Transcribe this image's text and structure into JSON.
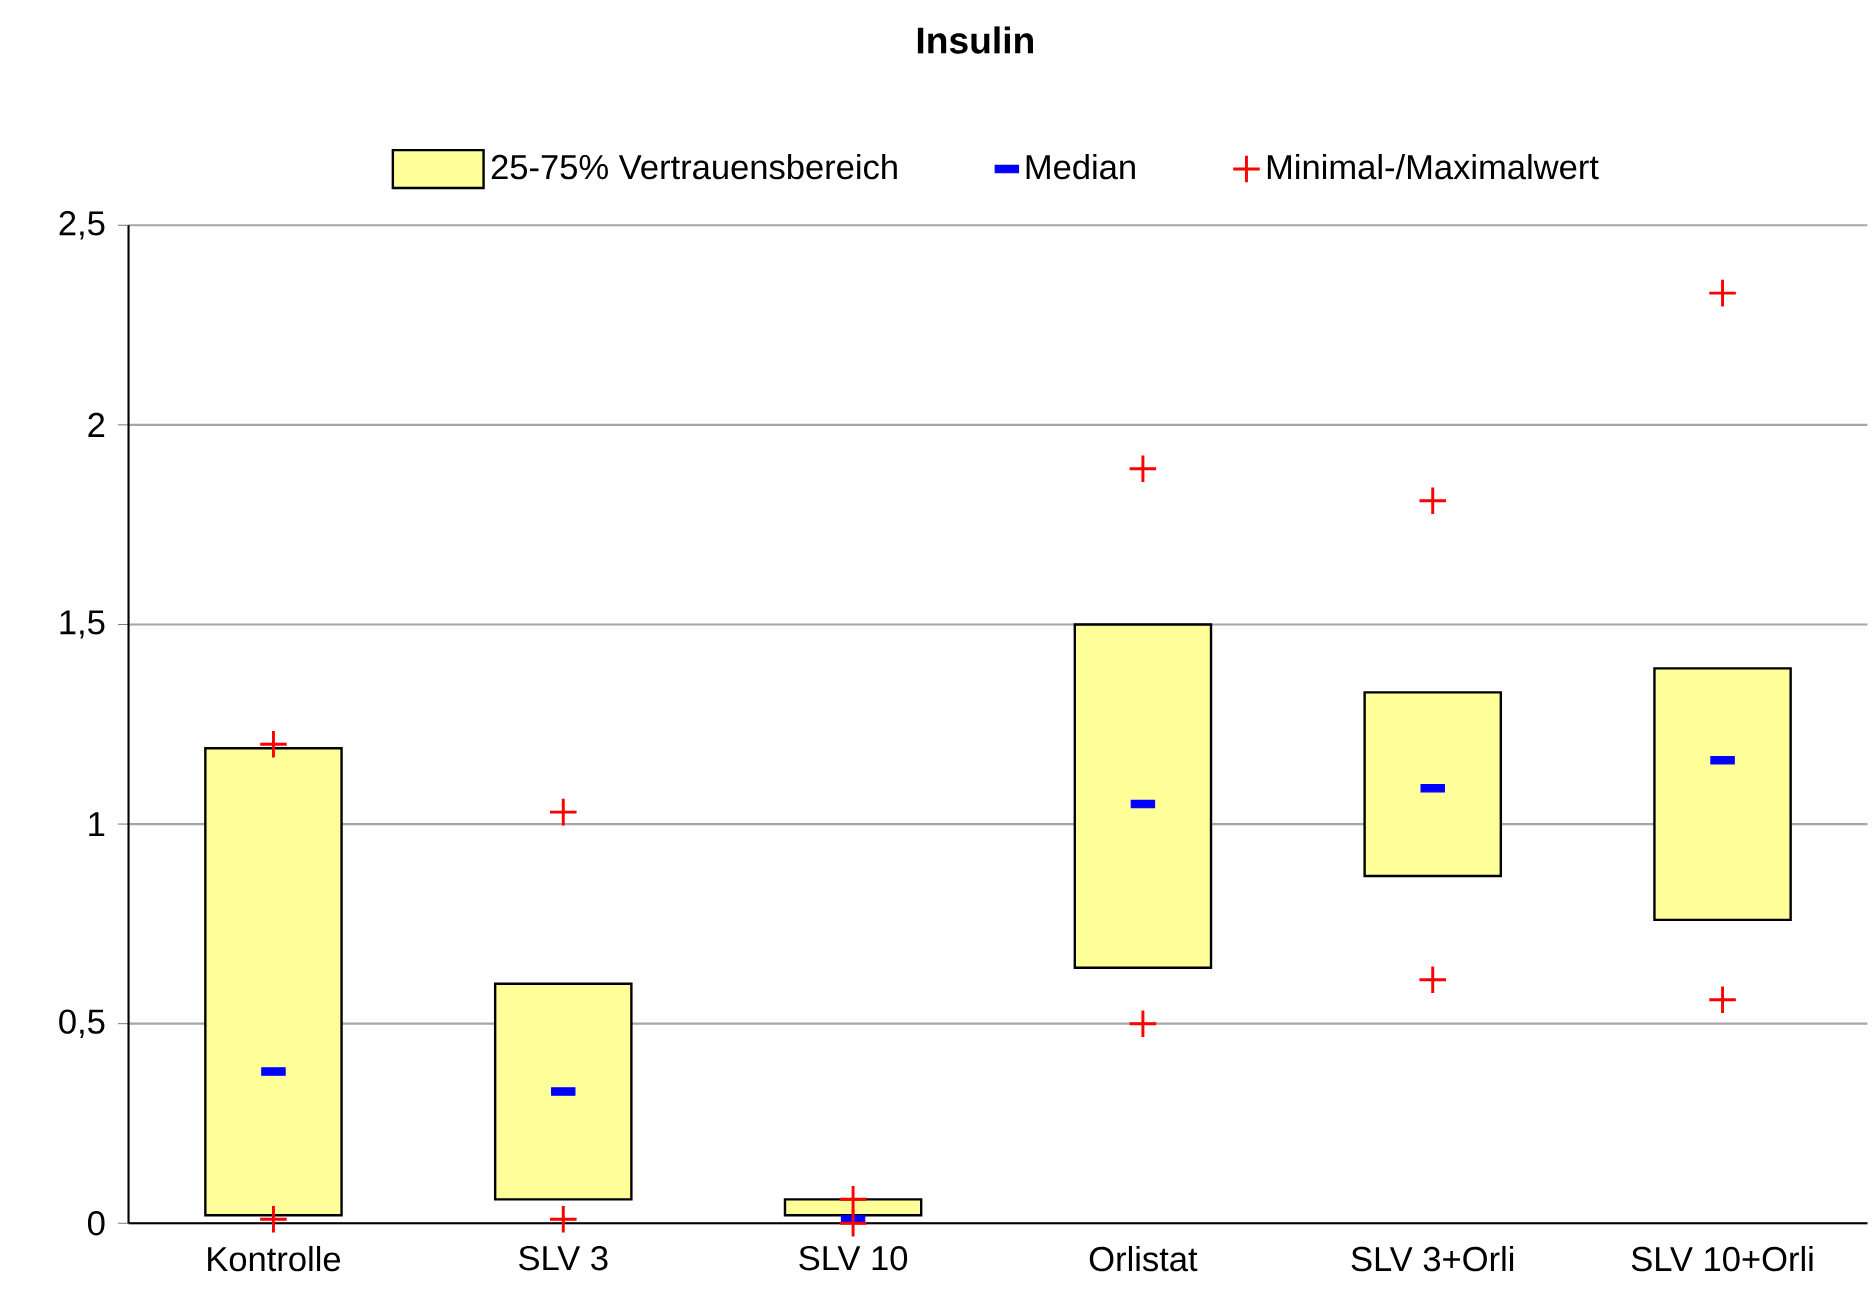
{
  "chart_data": {
    "type": "bar",
    "title": "Insulin",
    "categories": [
      "Kontrolle",
      "SLV 3",
      "SLV 10",
      "Orlistat",
      "SLV 3+Orli",
      "SLV 10+Orli"
    ],
    "series": [
      {
        "name": "25-75% Vertrauensbereich",
        "color": "#ffff99",
        "base": [
          0.02,
          0.06,
          0.02,
          0.64,
          0.87,
          0.76
        ],
        "values": [
          1.17,
          0.54,
          0.04,
          0.86,
          0.46,
          0.63
        ]
      },
      {
        "name": "Median",
        "color": "#0000ff",
        "type": "scatter",
        "x": [
          "Kontrolle",
          "SLV 3",
          "SLV 10",
          "Orlistat",
          "SLV 3+Orli",
          "SLV 10+Orli"
        ],
        "values": [
          0.38,
          0.33,
          0.01,
          1.05,
          1.09,
          1.16
        ]
      },
      {
        "name": "Minimal-/Maximalwert",
        "color": "#ff0000",
        "type": "scatter",
        "marker": "cross",
        "x": [
          "Kontrolle",
          "Kontrolle",
          "SLV 3",
          "SLV 3",
          "SLV 10",
          "SLV 10",
          "Orlistat",
          "Orlistat",
          "SLV 3+Orli",
          "SLV 3+Orli",
          "SLV 10+Orli",
          "SLV 10+Orli"
        ],
        "values": [
          1.2,
          0.01,
          1.03,
          0.01,
          0.06,
          0.0,
          1.89,
          0.5,
          1.81,
          0.61,
          2.33,
          0.56
        ]
      }
    ],
    "ylim": [
      0,
      2.5
    ],
    "yticks": [
      0,
      {
        "value": 0.5,
        "label": "0,5"
      },
      1,
      {
        "value": 1.5,
        "label": "1,5"
      },
      2,
      {
        "value": 2.5,
        "label": "2,5"
      }
    ],
    "grid": "y",
    "legend": "top"
  }
}
